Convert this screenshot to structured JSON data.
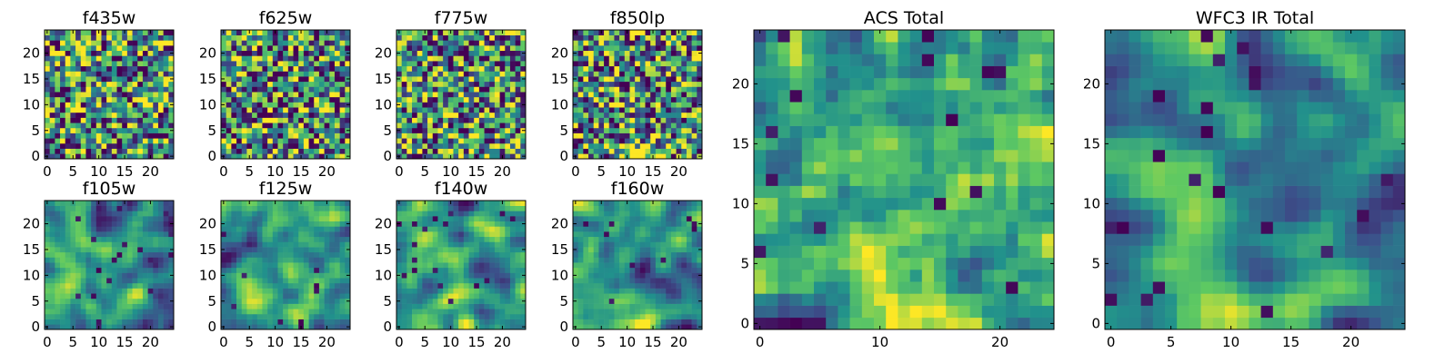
{
  "figure": {
    "colormap": [
      "#440154",
      "#3b528b",
      "#21918c",
      "#5ec962",
      "#fde725"
    ]
  },
  "chart_data": [
    {
      "type": "heatmap",
      "title": "f435w",
      "xticks": [
        0,
        5,
        10,
        15,
        20
      ],
      "yticks": [
        0,
        5,
        10,
        15,
        20
      ],
      "xlim": [
        -0.5,
        24.5
      ],
      "ylim": [
        -0.5,
        24.5
      ],
      "grid": false,
      "grid_size": [
        25,
        25
      ],
      "noise": 0.82,
      "smooth": 0,
      "hotspot": 0.0,
      "seed": 11
    },
    {
      "type": "heatmap",
      "title": "f625w",
      "xticks": [
        0,
        5,
        10,
        15,
        20
      ],
      "yticks": [
        0,
        5,
        10,
        15,
        20
      ],
      "xlim": [
        -0.5,
        24.5
      ],
      "ylim": [
        -0.5,
        24.5
      ],
      "grid": false,
      "grid_size": [
        25,
        25
      ],
      "noise": 0.8,
      "smooth": 0,
      "hotspot": 0.12,
      "seed": 23
    },
    {
      "type": "heatmap",
      "title": "f775w",
      "xticks": [
        0,
        5,
        10,
        15,
        20
      ],
      "yticks": [
        0,
        5,
        10,
        15,
        20
      ],
      "xlim": [
        -0.5,
        24.5
      ],
      "ylim": [
        -0.5,
        24.5
      ],
      "grid": false,
      "grid_size": [
        25,
        25
      ],
      "noise": 0.78,
      "smooth": 0,
      "hotspot": 0.35,
      "seed": 37
    },
    {
      "type": "heatmap",
      "title": "f850lp",
      "xticks": [
        0,
        5,
        10,
        15,
        20
      ],
      "yticks": [
        0,
        5,
        10,
        15,
        20
      ],
      "xlim": [
        -0.5,
        24.5
      ],
      "ylim": [
        -0.5,
        24.5
      ],
      "grid": false,
      "grid_size": [
        25,
        25
      ],
      "noise": 0.78,
      "smooth": 0,
      "hotspot": 0.35,
      "seed": 41
    },
    {
      "type": "heatmap",
      "title": "f105w",
      "xticks": [
        0,
        5,
        10,
        15,
        20
      ],
      "yticks": [
        0,
        5,
        10,
        15,
        20
      ],
      "xlim": [
        -0.5,
        24.5
      ],
      "ylim": [
        -0.5,
        24.5
      ],
      "grid": false,
      "grid_size": [
        25,
        25
      ],
      "noise": 0.5,
      "smooth": 2,
      "hotspot": 0.3,
      "seed": 53
    },
    {
      "type": "heatmap",
      "title": "f125w",
      "xticks": [
        0,
        5,
        10,
        15,
        20
      ],
      "yticks": [
        0,
        5,
        10,
        15,
        20
      ],
      "xlim": [
        -0.5,
        24.5
      ],
      "ylim": [
        -0.5,
        24.5
      ],
      "grid": false,
      "grid_size": [
        25,
        25
      ],
      "noise": 0.5,
      "smooth": 2,
      "hotspot": 0.35,
      "seed": 67
    },
    {
      "type": "heatmap",
      "title": "f140w",
      "xticks": [
        0,
        5,
        10,
        15,
        20
      ],
      "yticks": [
        0,
        5,
        10,
        15,
        20
      ],
      "xlim": [
        -0.5,
        24.5
      ],
      "ylim": [
        -0.5,
        24.5
      ],
      "grid": false,
      "grid_size": [
        25,
        25
      ],
      "noise": 0.55,
      "smooth": 2,
      "hotspot": 0.4,
      "seed": 71
    },
    {
      "type": "heatmap",
      "title": "f160w",
      "xticks": [
        0,
        5,
        10,
        15,
        20
      ],
      "yticks": [
        0,
        5,
        10,
        15,
        20
      ],
      "xlim": [
        -0.5,
        24.5
      ],
      "ylim": [
        -0.5,
        24.5
      ],
      "grid": false,
      "grid_size": [
        25,
        25
      ],
      "noise": 0.55,
      "smooth": 2,
      "hotspot": 0.4,
      "seed": 83
    },
    {
      "type": "heatmap",
      "title": "ACS Total",
      "xticks": [
        0,
        10,
        20
      ],
      "yticks": [
        0,
        5,
        10,
        15,
        20
      ],
      "xlim": [
        -0.5,
        24.5
      ],
      "ylim": [
        -0.5,
        24.5
      ],
      "grid": false,
      "grid_size": [
        25,
        25
      ],
      "noise": 0.62,
      "smooth": 1,
      "hotspot": 0.55,
      "seed": 97
    },
    {
      "type": "heatmap",
      "title": "WFC3 IR Total",
      "xticks": [
        0,
        5,
        10,
        15,
        20
      ],
      "yticks": [
        0,
        5,
        10,
        15,
        20
      ],
      "xlim": [
        -0.5,
        24.5
      ],
      "ylim": [
        -0.5,
        24.5
      ],
      "grid": false,
      "grid_size": [
        25,
        25
      ],
      "noise": 0.45,
      "smooth": 2,
      "hotspot": 0.65,
      "seed": 101
    }
  ]
}
